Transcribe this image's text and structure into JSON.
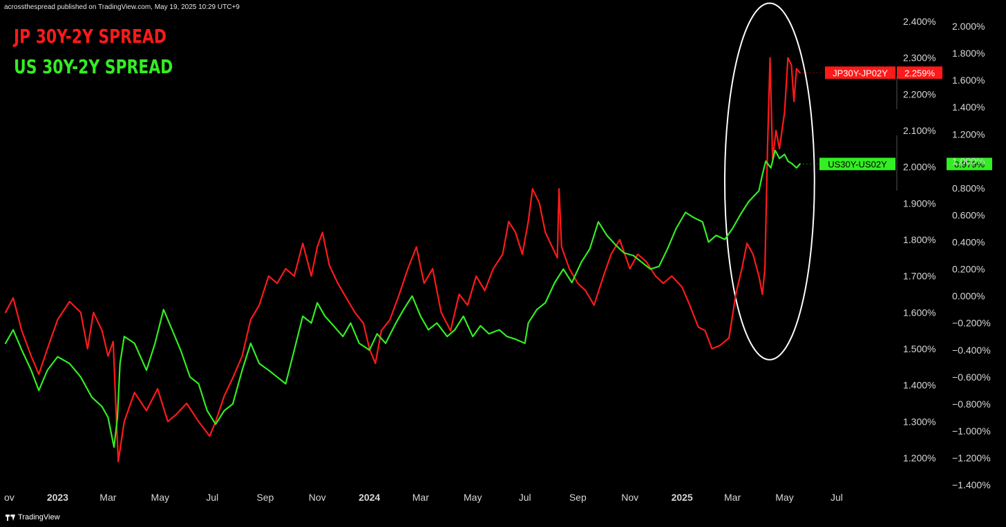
{
  "header": {
    "published": "acrossthespread published on TradingView.com, May 19, 2025 10:29 UTC+9"
  },
  "titles": {
    "jp": "JP 30Y-2Y SPREAD",
    "us": "US 30Y-2Y SPREAD"
  },
  "footer": {
    "logo_text": "TradingView"
  },
  "colors": {
    "background": "#000000",
    "jp_series": "#ff1a1a",
    "us_series": "#33ee22",
    "annotation": "#ffffff"
  },
  "chart_data": {
    "type": "line",
    "x_axis": {
      "type": "date",
      "range": [
        "2022-11-01",
        "2025-07-31"
      ],
      "ticks": [
        {
          "label": "ov",
          "date": "2022-11-01",
          "bold": false
        },
        {
          "label": "2023",
          "date": "2023-01-01",
          "bold": true
        },
        {
          "label": "Mar",
          "date": "2023-03-01",
          "bold": false
        },
        {
          "label": "May",
          "date": "2023-05-01",
          "bold": false
        },
        {
          "label": "Jul",
          "date": "2023-07-01",
          "bold": false
        },
        {
          "label": "Sep",
          "date": "2023-09-01",
          "bold": false
        },
        {
          "label": "Nov",
          "date": "2023-11-01",
          "bold": false
        },
        {
          "label": "2024",
          "date": "2024-01-01",
          "bold": true
        },
        {
          "label": "Mar",
          "date": "2024-03-01",
          "bold": false
        },
        {
          "label": "May",
          "date": "2024-05-01",
          "bold": false
        },
        {
          "label": "Jul",
          "date": "2024-07-01",
          "bold": false
        },
        {
          "label": "Sep",
          "date": "2024-09-01",
          "bold": false
        },
        {
          "label": "Nov",
          "date": "2024-11-01",
          "bold": false
        },
        {
          "label": "2025",
          "date": "2025-01-01",
          "bold": true
        },
        {
          "label": "Mar",
          "date": "2025-03-01",
          "bold": false
        },
        {
          "label": "May",
          "date": "2025-05-01",
          "bold": false
        },
        {
          "label": "Jul",
          "date": "2025-07-01",
          "bold": false
        }
      ]
    },
    "y_axes": [
      {
        "id": "jp",
        "range": [
          1.13,
          2.47
        ],
        "ticks": [
          "1.200%",
          "1.300%",
          "1.400%",
          "1.500%",
          "1.600%",
          "1.700%",
          "1.800%",
          "1.900%",
          "2.000%",
          "2.100%",
          "2.200%",
          "2.300%",
          "2.400%"
        ],
        "tick_values": [
          1.2,
          1.3,
          1.4,
          1.5,
          1.6,
          1.7,
          1.8,
          1.9,
          2.0,
          2.1,
          2.2,
          2.3,
          2.4
        ]
      },
      {
        "id": "us",
        "range": [
          -1.4,
          2.0
        ],
        "ticks": [
          "−1.400%",
          "−1.200%",
          "−1.000%",
          "−0.800%",
          "−0.600%",
          "−0.400%",
          "−0.200%",
          "0.000%",
          "0.200%",
          "0.400%",
          "0.600%",
          "0.800%",
          "1.000%",
          "1.200%",
          "1.400%",
          "1.600%",
          "1.800%",
          "2.000%"
        ],
        "tick_values": [
          -1.4,
          -1.2,
          -1.0,
          -0.8,
          -0.6,
          -0.4,
          -0.2,
          0.0,
          0.2,
          0.4,
          0.6,
          0.8,
          1.0,
          1.2,
          1.4,
          1.6,
          1.8,
          2.0
        ]
      }
    ],
    "series": [
      {
        "name": "JP30Y-JP02Y",
        "axis": "jp",
        "color": "#ff1a1a",
        "last_value_label": "2.259%",
        "last_value": 2.259,
        "points": [
          [
            "2022-11-01",
            1.6
          ],
          [
            "2022-11-10",
            1.64
          ],
          [
            "2022-11-20",
            1.55
          ],
          [
            "2022-12-01",
            1.48
          ],
          [
            "2022-12-10",
            1.43
          ],
          [
            "2022-12-20",
            1.5
          ],
          [
            "2023-01-01",
            1.58
          ],
          [
            "2023-01-15",
            1.63
          ],
          [
            "2023-01-28",
            1.6
          ],
          [
            "2023-02-05",
            1.5
          ],
          [
            "2023-02-12",
            1.6
          ],
          [
            "2023-02-22",
            1.55
          ],
          [
            "2023-03-01",
            1.48
          ],
          [
            "2023-03-07",
            1.52
          ],
          [
            "2023-03-10",
            1.35
          ],
          [
            "2023-03-13",
            1.19
          ],
          [
            "2023-03-20",
            1.3
          ],
          [
            "2023-04-01",
            1.38
          ],
          [
            "2023-04-15",
            1.33
          ],
          [
            "2023-04-28",
            1.39
          ],
          [
            "2023-05-10",
            1.3
          ],
          [
            "2023-05-20",
            1.32
          ],
          [
            "2023-06-01",
            1.35
          ],
          [
            "2023-06-15",
            1.3
          ],
          [
            "2023-06-28",
            1.26
          ],
          [
            "2023-07-05",
            1.3
          ],
          [
            "2023-07-15",
            1.37
          ],
          [
            "2023-07-25",
            1.42
          ],
          [
            "2023-08-05",
            1.48
          ],
          [
            "2023-08-15",
            1.58
          ],
          [
            "2023-08-25",
            1.62
          ],
          [
            "2023-09-05",
            1.7
          ],
          [
            "2023-09-15",
            1.68
          ],
          [
            "2023-09-25",
            1.72
          ],
          [
            "2023-10-05",
            1.7
          ],
          [
            "2023-10-15",
            1.79
          ],
          [
            "2023-10-25",
            1.7
          ],
          [
            "2023-11-01",
            1.78
          ],
          [
            "2023-11-07",
            1.82
          ],
          [
            "2023-11-15",
            1.73
          ],
          [
            "2023-11-25",
            1.68
          ],
          [
            "2023-12-05",
            1.64
          ],
          [
            "2023-12-15",
            1.6
          ],
          [
            "2023-12-25",
            1.57
          ],
          [
            "2024-01-01",
            1.5
          ],
          [
            "2024-01-08",
            1.46
          ],
          [
            "2024-01-15",
            1.55
          ],
          [
            "2024-01-25",
            1.58
          ],
          [
            "2024-02-05",
            1.65
          ],
          [
            "2024-02-15",
            1.72
          ],
          [
            "2024-02-25",
            1.78
          ],
          [
            "2024-03-05",
            1.68
          ],
          [
            "2024-03-15",
            1.72
          ],
          [
            "2024-03-25",
            1.6
          ],
          [
            "2024-04-05",
            1.55
          ],
          [
            "2024-04-15",
            1.65
          ],
          [
            "2024-04-25",
            1.62
          ],
          [
            "2024-05-05",
            1.7
          ],
          [
            "2024-05-15",
            1.66
          ],
          [
            "2024-05-25",
            1.72
          ],
          [
            "2024-06-05",
            1.76
          ],
          [
            "2024-06-12",
            1.85
          ],
          [
            "2024-06-20",
            1.82
          ],
          [
            "2024-06-28",
            1.76
          ],
          [
            "2024-07-05",
            1.85
          ],
          [
            "2024-07-10",
            1.94
          ],
          [
            "2024-07-18",
            1.9
          ],
          [
            "2024-07-25",
            1.82
          ],
          [
            "2024-08-02",
            1.78
          ],
          [
            "2024-08-08",
            1.75
          ],
          [
            "2024-08-10",
            1.94
          ],
          [
            "2024-08-13",
            1.78
          ],
          [
            "2024-08-22",
            1.72
          ],
          [
            "2024-09-01",
            1.68
          ],
          [
            "2024-09-10",
            1.66
          ],
          [
            "2024-09-20",
            1.62
          ],
          [
            "2024-10-01",
            1.7
          ],
          [
            "2024-10-10",
            1.76
          ],
          [
            "2024-10-20",
            1.8
          ],
          [
            "2024-11-01",
            1.72
          ],
          [
            "2024-11-10",
            1.76
          ],
          [
            "2024-11-20",
            1.74
          ],
          [
            "2024-12-01",
            1.7
          ],
          [
            "2024-12-10",
            1.68
          ],
          [
            "2024-12-20",
            1.7
          ],
          [
            "2025-01-01",
            1.67
          ],
          [
            "2025-01-10",
            1.62
          ],
          [
            "2025-01-20",
            1.56
          ],
          [
            "2025-01-28",
            1.55
          ],
          [
            "2025-02-05",
            1.5
          ],
          [
            "2025-02-15",
            1.51
          ],
          [
            "2025-02-25",
            1.53
          ],
          [
            "2025-03-05",
            1.65
          ],
          [
            "2025-03-12",
            1.72
          ],
          [
            "2025-03-18",
            1.79
          ],
          [
            "2025-03-25",
            1.76
          ],
          [
            "2025-04-01",
            1.7
          ],
          [
            "2025-04-05",
            1.65
          ],
          [
            "2025-04-08",
            1.72
          ],
          [
            "2025-04-11",
            2.05
          ],
          [
            "2025-04-14",
            2.3
          ],
          [
            "2025-04-17",
            2.02
          ],
          [
            "2025-04-21",
            2.1
          ],
          [
            "2025-04-25",
            2.05
          ],
          [
            "2025-05-01",
            2.15
          ],
          [
            "2025-05-05",
            2.3
          ],
          [
            "2025-05-09",
            2.28
          ],
          [
            "2025-05-12",
            2.18
          ],
          [
            "2025-05-15",
            2.27
          ],
          [
            "2025-05-19",
            2.259
          ]
        ]
      },
      {
        "name": "US30Y-US02Y",
        "axis": "us",
        "color": "#33ee22",
        "last_value_label": "0.979%",
        "last_value": 0.979,
        "points": [
          [
            "2022-11-01",
            -0.35
          ],
          [
            "2022-11-10",
            -0.25
          ],
          [
            "2022-11-20",
            -0.4
          ],
          [
            "2022-12-01",
            -0.55
          ],
          [
            "2022-12-10",
            -0.7
          ],
          [
            "2022-12-20",
            -0.55
          ],
          [
            "2023-01-01",
            -0.45
          ],
          [
            "2023-01-15",
            -0.5
          ],
          [
            "2023-01-28",
            -0.6
          ],
          [
            "2023-02-10",
            -0.75
          ],
          [
            "2023-02-22",
            -0.82
          ],
          [
            "2023-03-01",
            -0.9
          ],
          [
            "2023-03-08",
            -1.12
          ],
          [
            "2023-03-12",
            -0.9
          ],
          [
            "2023-03-15",
            -0.5
          ],
          [
            "2023-03-20",
            -0.3
          ],
          [
            "2023-04-01",
            -0.35
          ],
          [
            "2023-04-15",
            -0.55
          ],
          [
            "2023-04-25",
            -0.35
          ],
          [
            "2023-05-05",
            -0.1
          ],
          [
            "2023-05-15",
            -0.25
          ],
          [
            "2023-05-25",
            -0.4
          ],
          [
            "2023-06-05",
            -0.6
          ],
          [
            "2023-06-15",
            -0.65
          ],
          [
            "2023-06-25",
            -0.85
          ],
          [
            "2023-07-05",
            -0.95
          ],
          [
            "2023-07-15",
            -0.85
          ],
          [
            "2023-07-25",
            -0.8
          ],
          [
            "2023-08-05",
            -0.55
          ],
          [
            "2023-08-15",
            -0.35
          ],
          [
            "2023-08-25",
            -0.5
          ],
          [
            "2023-09-05",
            -0.55
          ],
          [
            "2023-09-15",
            -0.6
          ],
          [
            "2023-09-25",
            -0.65
          ],
          [
            "2023-10-05",
            -0.4
          ],
          [
            "2023-10-15",
            -0.15
          ],
          [
            "2023-10-25",
            -0.2
          ],
          [
            "2023-11-01",
            -0.05
          ],
          [
            "2023-11-10",
            -0.15
          ],
          [
            "2023-11-20",
            -0.22
          ],
          [
            "2023-12-01",
            -0.3
          ],
          [
            "2023-12-10",
            -0.2
          ],
          [
            "2023-12-20",
            -0.35
          ],
          [
            "2024-01-01",
            -0.4
          ],
          [
            "2024-01-10",
            -0.28
          ],
          [
            "2024-01-20",
            -0.35
          ],
          [
            "2024-02-01",
            -0.2
          ],
          [
            "2024-02-10",
            -0.1
          ],
          [
            "2024-02-20",
            0.0
          ],
          [
            "2024-03-01",
            -0.15
          ],
          [
            "2024-03-10",
            -0.25
          ],
          [
            "2024-03-20",
            -0.2
          ],
          [
            "2024-04-01",
            -0.3
          ],
          [
            "2024-04-10",
            -0.25
          ],
          [
            "2024-04-20",
            -0.15
          ],
          [
            "2024-05-01",
            -0.3
          ],
          [
            "2024-05-10",
            -0.22
          ],
          [
            "2024-05-20",
            -0.28
          ],
          [
            "2024-06-01",
            -0.25
          ],
          [
            "2024-06-10",
            -0.3
          ],
          [
            "2024-06-20",
            -0.32
          ],
          [
            "2024-07-01",
            -0.35
          ],
          [
            "2024-07-05",
            -0.2
          ],
          [
            "2024-07-15",
            -0.1
          ],
          [
            "2024-07-25",
            -0.05
          ],
          [
            "2024-08-05",
            0.1
          ],
          [
            "2024-08-15",
            0.2
          ],
          [
            "2024-08-25",
            0.1
          ],
          [
            "2024-09-05",
            0.25
          ],
          [
            "2024-09-15",
            0.35
          ],
          [
            "2024-09-25",
            0.55
          ],
          [
            "2024-10-05",
            0.45
          ],
          [
            "2024-10-15",
            0.38
          ],
          [
            "2024-10-25",
            0.32
          ],
          [
            "2024-11-05",
            0.3
          ],
          [
            "2024-11-15",
            0.25
          ],
          [
            "2024-11-25",
            0.2
          ],
          [
            "2024-12-05",
            0.22
          ],
          [
            "2024-12-15",
            0.35
          ],
          [
            "2024-12-25",
            0.5
          ],
          [
            "2025-01-05",
            0.62
          ],
          [
            "2025-01-15",
            0.58
          ],
          [
            "2025-01-25",
            0.55
          ],
          [
            "2025-02-01",
            0.4
          ],
          [
            "2025-02-10",
            0.45
          ],
          [
            "2025-02-20",
            0.42
          ],
          [
            "2025-03-01",
            0.5
          ],
          [
            "2025-03-10",
            0.6
          ],
          [
            "2025-03-20",
            0.7
          ],
          [
            "2025-04-01",
            0.78
          ],
          [
            "2025-04-05",
            0.9
          ],
          [
            "2025-04-09",
            1.0
          ],
          [
            "2025-04-15",
            0.95
          ],
          [
            "2025-04-20",
            1.08
          ],
          [
            "2025-04-25",
            1.02
          ],
          [
            "2025-05-01",
            1.05
          ],
          [
            "2025-05-05",
            1.0
          ],
          [
            "2025-05-10",
            0.98
          ],
          [
            "2025-05-15",
            0.95
          ],
          [
            "2025-05-19",
            0.979
          ]
        ]
      }
    ],
    "annotations": [
      {
        "type": "ellipse",
        "color": "#ffffff",
        "from_date": "2025-02-20",
        "to_date": "2025-06-05",
        "jp_top": 2.45,
        "jp_bottom": 1.47
      }
    ],
    "grid": false,
    "legend": "none"
  }
}
